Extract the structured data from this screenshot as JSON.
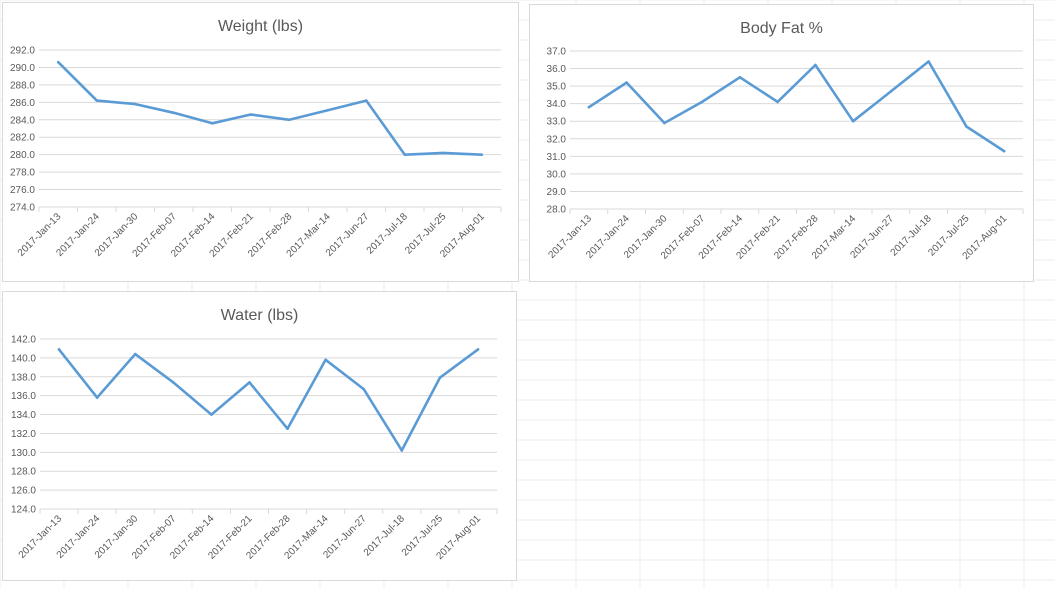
{
  "chart_data": [
    {
      "id": "weight",
      "type": "line",
      "title": "Weight (lbs)",
      "xlabel": "",
      "ylabel": "",
      "categories": [
        "2017-Jan-13",
        "2017-Jan-24",
        "2017-Jan-30",
        "2017-Feb-07",
        "2017-Feb-14",
        "2017-Feb-21",
        "2017-Feb-28",
        "2017-Mar-14",
        "2017-Jun-27",
        "2017-Jul-18",
        "2017-Jul-25",
        "2017-Aug-01"
      ],
      "values": [
        290.6,
        286.2,
        285.8,
        284.8,
        283.6,
        284.6,
        284.0,
        285.1,
        286.2,
        280.0,
        280.2,
        280.0
      ],
      "ylim": [
        274.0,
        292.0
      ],
      "yticks": [
        "274.0",
        "276.0",
        "278.0",
        "280.0",
        "282.0",
        "284.0",
        "286.0",
        "288.0",
        "290.0",
        "292.0"
      ],
      "grid": true,
      "legend": "none",
      "color": "#5b9bd5"
    },
    {
      "id": "fat",
      "type": "line",
      "title": "Body Fat %",
      "xlabel": "",
      "ylabel": "",
      "categories": [
        "2017-Jan-13",
        "2017-Jan-24",
        "2017-Jan-30",
        "2017-Feb-07",
        "2017-Feb-14",
        "2017-Feb-21",
        "2017-Feb-28",
        "2017-Mar-14",
        "2017-Jun-27",
        "2017-Jul-18",
        "2017-Jul-25",
        "2017-Aug-01"
      ],
      "values": [
        33.8,
        35.2,
        32.9,
        34.1,
        35.5,
        34.1,
        36.2,
        33.0,
        34.7,
        36.4,
        32.7,
        31.3
      ],
      "ylim": [
        28.0,
        37.0
      ],
      "yticks": [
        "28.0",
        "29.0",
        "30.0",
        "31.0",
        "32.0",
        "33.0",
        "34.0",
        "35.0",
        "36.0",
        "37.0"
      ],
      "grid": true,
      "legend": "none",
      "color": "#5b9bd5"
    },
    {
      "id": "water",
      "type": "line",
      "title": "Water (lbs)",
      "xlabel": "",
      "ylabel": "",
      "categories": [
        "2017-Jan-13",
        "2017-Jan-24",
        "2017-Jan-30",
        "2017-Feb-07",
        "2017-Feb-14",
        "2017-Feb-21",
        "2017-Feb-28",
        "2017-Mar-14",
        "2017-Jun-27",
        "2017-Jul-18",
        "2017-Jul-25",
        "2017-Aug-01"
      ],
      "values": [
        140.9,
        135.8,
        140.4,
        137.4,
        134.0,
        137.4,
        132.5,
        139.8,
        136.7,
        130.2,
        137.9,
        140.9
      ],
      "ylim": [
        124.0,
        142.0
      ],
      "yticks": [
        "124.0",
        "126.0",
        "128.0",
        "130.0",
        "132.0",
        "134.0",
        "136.0",
        "138.0",
        "140.0",
        "142.0"
      ],
      "grid": true,
      "legend": "none",
      "color": "#5b9bd5"
    }
  ]
}
